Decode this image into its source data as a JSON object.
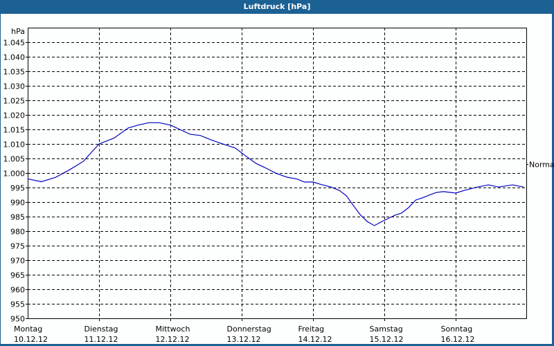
{
  "window": {
    "title": "Luftdruck [hPa]"
  },
  "colors": {
    "titlebar": "#1c6194",
    "background": "#fcfffd",
    "line": "#0000c0",
    "grid": "#000000"
  },
  "chart_data": {
    "type": "line",
    "title": "Luftdruck [hPa]",
    "xlabel": "",
    "ylabel": "hPa",
    "ylim": [
      950,
      1045
    ],
    "y_ticks": [
      "1.045",
      "1.040",
      "1.035",
      "1.030",
      "1.025",
      "1.020",
      "1.015",
      "1.010",
      "1.005",
      "1.000",
      "995",
      "990",
      "985",
      "980",
      "975",
      "970",
      "965",
      "960",
      "955",
      "950"
    ],
    "x_ticks": [
      {
        "day": "Montag",
        "date": "10.12.12"
      },
      {
        "day": "Dienstag",
        "date": "11.12.12"
      },
      {
        "day": "Mittwoch",
        "date": "12.12.12"
      },
      {
        "day": "Donnerstag",
        "date": "13.12.12"
      },
      {
        "day": "Freitag",
        "date": "14.12.12"
      },
      {
        "day": "Samstag",
        "date": "15.12.12"
      },
      {
        "day": "Sonntag",
        "date": "16.12.12"
      }
    ],
    "annotation": {
      "text": "Normal",
      "value": 1003
    },
    "grid": true,
    "legend": null,
    "series": [
      {
        "name": "Luftdruck",
        "x_days": [
          0,
          0.19,
          0.39,
          0.58,
          0.78,
          1.0,
          1.21,
          1.41,
          1.55,
          1.7,
          1.84,
          2.0,
          2.13,
          2.28,
          2.42,
          2.57,
          2.71,
          2.91,
          3.05,
          3.2,
          3.34,
          3.49,
          3.63,
          3.78,
          3.88,
          4.0,
          4.12,
          4.25,
          4.37,
          4.47,
          4.56,
          4.66,
          4.76,
          4.86,
          4.95,
          5.05,
          5.15,
          5.24,
          5.34,
          5.44,
          5.53,
          5.63,
          5.73,
          5.83,
          6.0,
          6.12,
          6.31,
          6.46,
          6.6,
          6.8,
          6.95
        ],
        "values": [
          998,
          997,
          998.5,
          1001,
          1004,
          1010,
          1012,
          1015.5,
          1016.5,
          1017.3,
          1017.3,
          1016.5,
          1015,
          1013.3,
          1012.9,
          1011.4,
          1010.2,
          1008.6,
          1006,
          1003.3,
          1001.7,
          999.8,
          998.6,
          997.9,
          996.9,
          996.9,
          996,
          995.2,
          994,
          992.1,
          989,
          985.7,
          983.3,
          981.9,
          983.1,
          984.3,
          985.5,
          986.2,
          988.1,
          990.7,
          991.4,
          992.4,
          993.3,
          993.6,
          993.1,
          994,
          995.2,
          995.9,
          995.2,
          995.9,
          995.2
        ]
      }
    ]
  }
}
